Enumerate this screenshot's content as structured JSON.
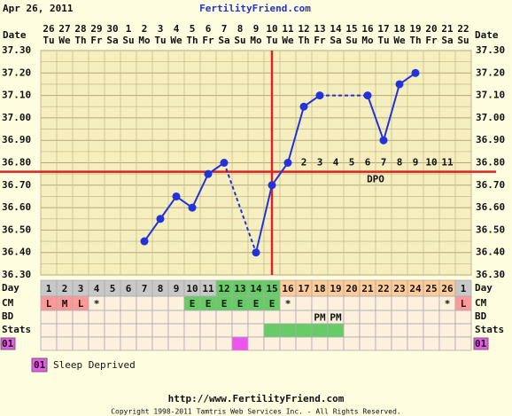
{
  "header": {
    "date": "Apr 26, 2011",
    "site": "FertilityFriend.com",
    "date_label": "Date"
  },
  "chart_data": {
    "type": "line",
    "categories": [
      "26",
      "27",
      "28",
      "29",
      "30",
      "1",
      "2",
      "3",
      "4",
      "5",
      "6",
      "7",
      "8",
      "9",
      "10",
      "11",
      "12",
      "13",
      "14",
      "15",
      "16",
      "17",
      "18",
      "19",
      "20",
      "21",
      "22"
    ],
    "weekdays": [
      "Tu",
      "We",
      "Th",
      "Fr",
      "Sa",
      "Su",
      "Mo",
      "Tu",
      "We",
      "Th",
      "Fr",
      "Sa",
      "Su",
      "Mo",
      "Tu",
      "We",
      "Th",
      "Fr",
      "Sa",
      "Su",
      "Mo",
      "Tu",
      "We",
      "Th",
      "Fr",
      "Sa",
      "Su"
    ],
    "values": [
      null,
      null,
      null,
      null,
      null,
      null,
      36.45,
      36.55,
      36.65,
      36.6,
      36.75,
      36.8,
      null,
      36.4,
      36.7,
      36.8,
      37.05,
      37.1,
      null,
      null,
      37.1,
      36.9,
      37.15,
      37.2,
      null,
      null,
      null
    ],
    "color": "#2233dd",
    "ylim": [
      36.3,
      37.3
    ],
    "yticks": [
      {
        "value": 36.3,
        "label": "36.30"
      },
      {
        "value": 36.4,
        "label": "36.40"
      },
      {
        "value": 36.5,
        "label": "36.50"
      },
      {
        "value": 36.6,
        "label": "36.60"
      },
      {
        "value": 36.7,
        "label": "36.70"
      },
      {
        "value": 36.8,
        "label": "36.80"
      },
      {
        "value": 36.9,
        "label": "36.90"
      },
      {
        "value": 37.0,
        "label": "37.00"
      },
      {
        "value": 37.1,
        "label": "37.10"
      },
      {
        "value": 37.2,
        "label": "37.20"
      },
      {
        "value": 37.3,
        "label": "37.30"
      }
    ],
    "grid": true,
    "coverline": 36.76,
    "ovulation_day": 15,
    "line_color": "#dd2222",
    "dpo": [
      null,
      null,
      null,
      null,
      null,
      null,
      null,
      null,
      null,
      null,
      null,
      null,
      null,
      null,
      null,
      null,
      2,
      3,
      4,
      5,
      6,
      7,
      8,
      9,
      10,
      11,
      null
    ],
    "dpo_label": "DPO",
    "day_label": "Day",
    "days": [
      1,
      2,
      3,
      4,
      5,
      6,
      7,
      8,
      9,
      10,
      11,
      12,
      13,
      14,
      15,
      16,
      17,
      18,
      19,
      20,
      21,
      22,
      23,
      24,
      25,
      26,
      1
    ],
    "day_colors": [
      "#c8c8c8",
      "#c8c8c8",
      "#c8c8c8",
      "#c8c8c8",
      "#c8c8c8",
      "#c8c8c8",
      "#c8c8c8",
      "#c8c8c8",
      "#c8c8c8",
      "#c8c8c8",
      "#c8c8c8",
      "#66cc66",
      "#66cc66",
      "#66cc66",
      "#66cc66",
      "#ffcc99",
      "#ffcc99",
      "#ffcc99",
      "#ffcc99",
      "#ffcc99",
      "#ffcc99",
      "#ffcc99",
      "#ffcc99",
      "#ffcc99",
      "#ffcc99",
      "#ffcc99",
      "#c8c8c8"
    ],
    "cm": {
      "label": "CM",
      "values": [
        "L",
        "M",
        "L",
        "*",
        null,
        null,
        null,
        null,
        null,
        "E",
        "E",
        "E",
        "E",
        "E",
        "E",
        "*",
        null,
        null,
        null,
        null,
        null,
        null,
        null,
        null,
        null,
        "*",
        "L"
      ],
      "colors": {
        "L": "#ff9999",
        "M": "#ff9999",
        "E": "#66cc66"
      }
    },
    "bd": {
      "label": "BD",
      "values": [
        null,
        null,
        null,
        null,
        null,
        null,
        null,
        null,
        null,
        null,
        null,
        null,
        null,
        null,
        null,
        null,
        null,
        "PM",
        "PM",
        null,
        null,
        null,
        null,
        null,
        null,
        null,
        null
      ]
    },
    "stats": {
      "label": "Stats",
      "colors": [
        null,
        null,
        null,
        null,
        null,
        null,
        null,
        null,
        null,
        null,
        null,
        null,
        null,
        null,
        "#66cc66",
        "#66cc66",
        "#66cc66",
        "#66cc66",
        "#66cc66",
        null,
        null,
        null,
        null,
        null,
        null,
        null,
        null
      ]
    },
    "custom": {
      "label": "01",
      "color": "#ee55ee",
      "colors": [
        null,
        null,
        null,
        null,
        null,
        null,
        null,
        null,
        null,
        null,
        null,
        null,
        "#ee55ee",
        null,
        null,
        null,
        null,
        null,
        null,
        null,
        null,
        null,
        null,
        null,
        null,
        null,
        null
      ]
    },
    "legend": {
      "code": "01",
      "text": "Sleep Deprived"
    }
  },
  "footer": {
    "url": "http://www.FertilityFriend.com",
    "copyright": "Copyright 1998-2011 Tamtris Web Services Inc. - All Rights Reserved."
  }
}
